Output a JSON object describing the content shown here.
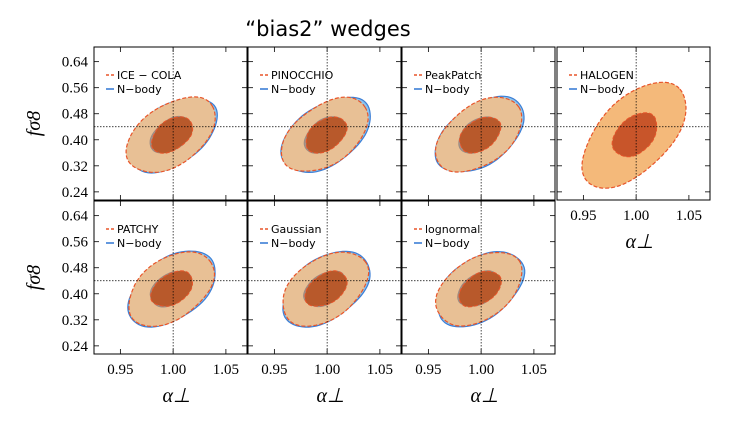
{
  "title": "“bias2” wedges",
  "chart_data": {
    "type": "contour",
    "description_axes": {
      "xlabel": "α⊥",
      "ylabel": "fσ8",
      "xlim": [
        0.925,
        1.07
      ],
      "ylim": [
        0.215,
        0.685
      ],
      "x_ticks": [
        "0.95",
        "1.00",
        "1.05"
      ],
      "y_ticks": [
        "0.24",
        "0.32",
        "0.40",
        "0.48",
        "0.56",
        "0.64"
      ],
      "reference_x": 1.0,
      "reference_y": 0.44
    },
    "colors": {
      "reference": "#3c7fd6",
      "model": "#e8552a",
      "fill_outer": "#e8c095",
      "fill_inner": "#b8592b",
      "fill_outer_halogen": "#f4b97a",
      "fill_inner_halogen": "#c8552a",
      "nbody_blue": "#8ec4ec"
    },
    "reference_label": "N−body",
    "panels": [
      {
        "name": "ICE − COLA",
        "inner_rx": 0.022,
        "inner_ry": 0.09,
        "outer_rx": 0.047,
        "outer_ry": 0.185,
        "rotate": -35
      },
      {
        "name": "PINOCCHIO",
        "inner_rx": 0.022,
        "inner_ry": 0.09,
        "outer_rx": 0.046,
        "outer_ry": 0.18,
        "rotate": -35
      },
      {
        "name": "PeakPatch",
        "inner_rx": 0.022,
        "inner_ry": 0.09,
        "outer_rx": 0.046,
        "outer_ry": 0.182,
        "rotate": -35
      },
      {
        "name": "HALOGEN",
        "inner_rx": 0.025,
        "inner_ry": 0.105,
        "outer_rx": 0.062,
        "outer_ry": 0.215,
        "rotate": -45
      },
      {
        "name": "PATCHY",
        "inner_rx": 0.022,
        "inner_ry": 0.09,
        "outer_rx": 0.046,
        "outer_ry": 0.182,
        "rotate": -35
      },
      {
        "name": "Gaussian",
        "inner_rx": 0.022,
        "inner_ry": 0.09,
        "outer_rx": 0.046,
        "outer_ry": 0.182,
        "rotate": -35
      },
      {
        "name": "lognormal",
        "inner_rx": 0.022,
        "inner_ry": 0.09,
        "outer_rx": 0.046,
        "outer_ry": 0.182,
        "rotate": -35
      }
    ]
  }
}
